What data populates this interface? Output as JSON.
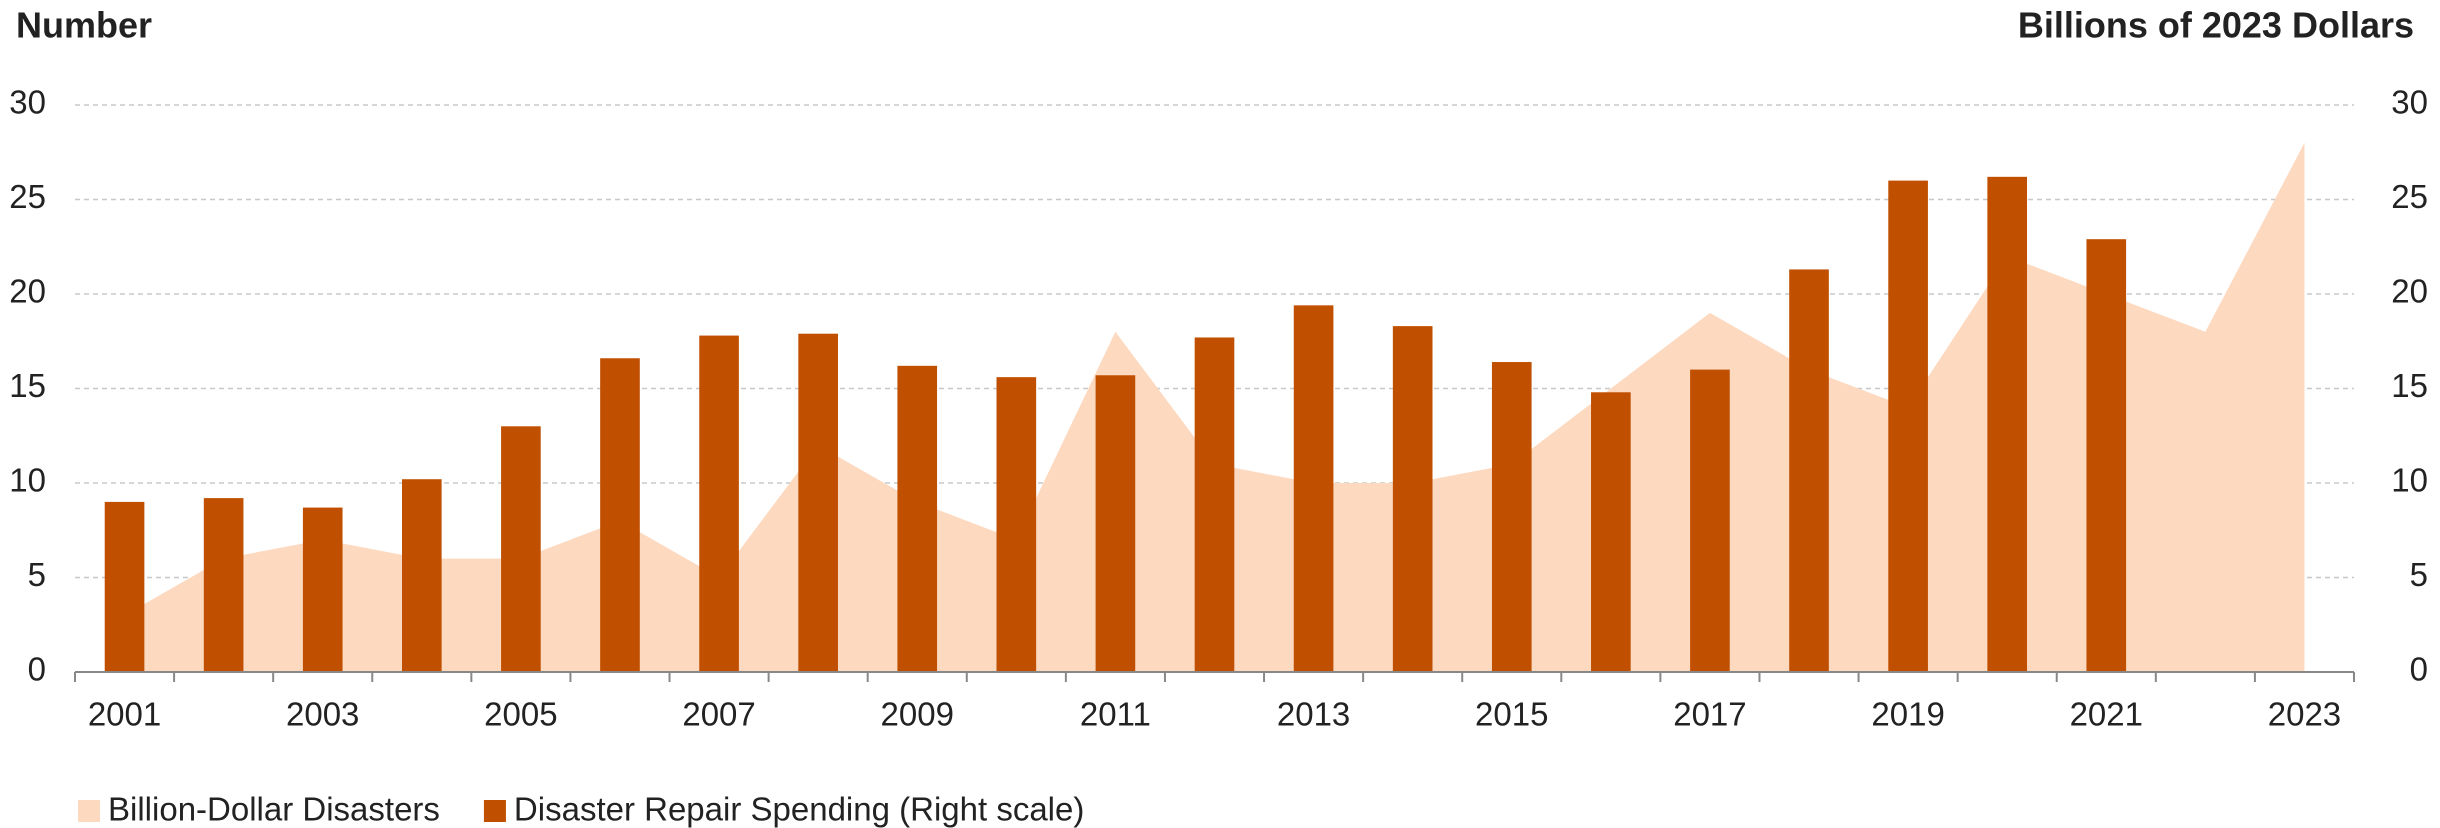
{
  "chart_data": {
    "type": "bar-area",
    "y_label": "Number",
    "y2_label": "Billions of 2023 Dollars",
    "categories": [
      "2001",
      null,
      "2003",
      null,
      "2005",
      null,
      "2007",
      null,
      "2009",
      null,
      "2011",
      null,
      "2013",
      null,
      "2015",
      null,
      "2017",
      null,
      "2019",
      null,
      "2021",
      null,
      "2023"
    ],
    "series": [
      {
        "name": "Billion-Dollar Disasters",
        "type": "area",
        "color": "#fdd9c0",
        "values": [
          3,
          6,
          7,
          6,
          6,
          8,
          5,
          12,
          9,
          7,
          18,
          11,
          10,
          10,
          11,
          15,
          19,
          16,
          14,
          22,
          20,
          18,
          28
        ]
      },
      {
        "name": "Disaster Repair Spending (Right scale)",
        "type": "bar",
        "axis": "y2",
        "color": "#c04f00",
        "values": [
          9.0,
          9.2,
          8.7,
          10.2,
          13.0,
          16.6,
          17.8,
          17.9,
          16.2,
          15.6,
          15.7,
          17.7,
          19.4,
          18.3,
          16.4,
          14.8,
          16.0,
          21.3,
          26.0,
          26.2,
          22.9,
          null,
          null
        ]
      }
    ],
    "ylim": [
      0,
      30
    ],
    "yticks": [
      0,
      5,
      10,
      15,
      20,
      25,
      30
    ],
    "y2lim": [
      0,
      30
    ],
    "y2ticks": [
      0,
      5,
      10,
      15,
      20,
      25,
      30
    ],
    "grid": true,
    "legend": "bottom-left"
  }
}
